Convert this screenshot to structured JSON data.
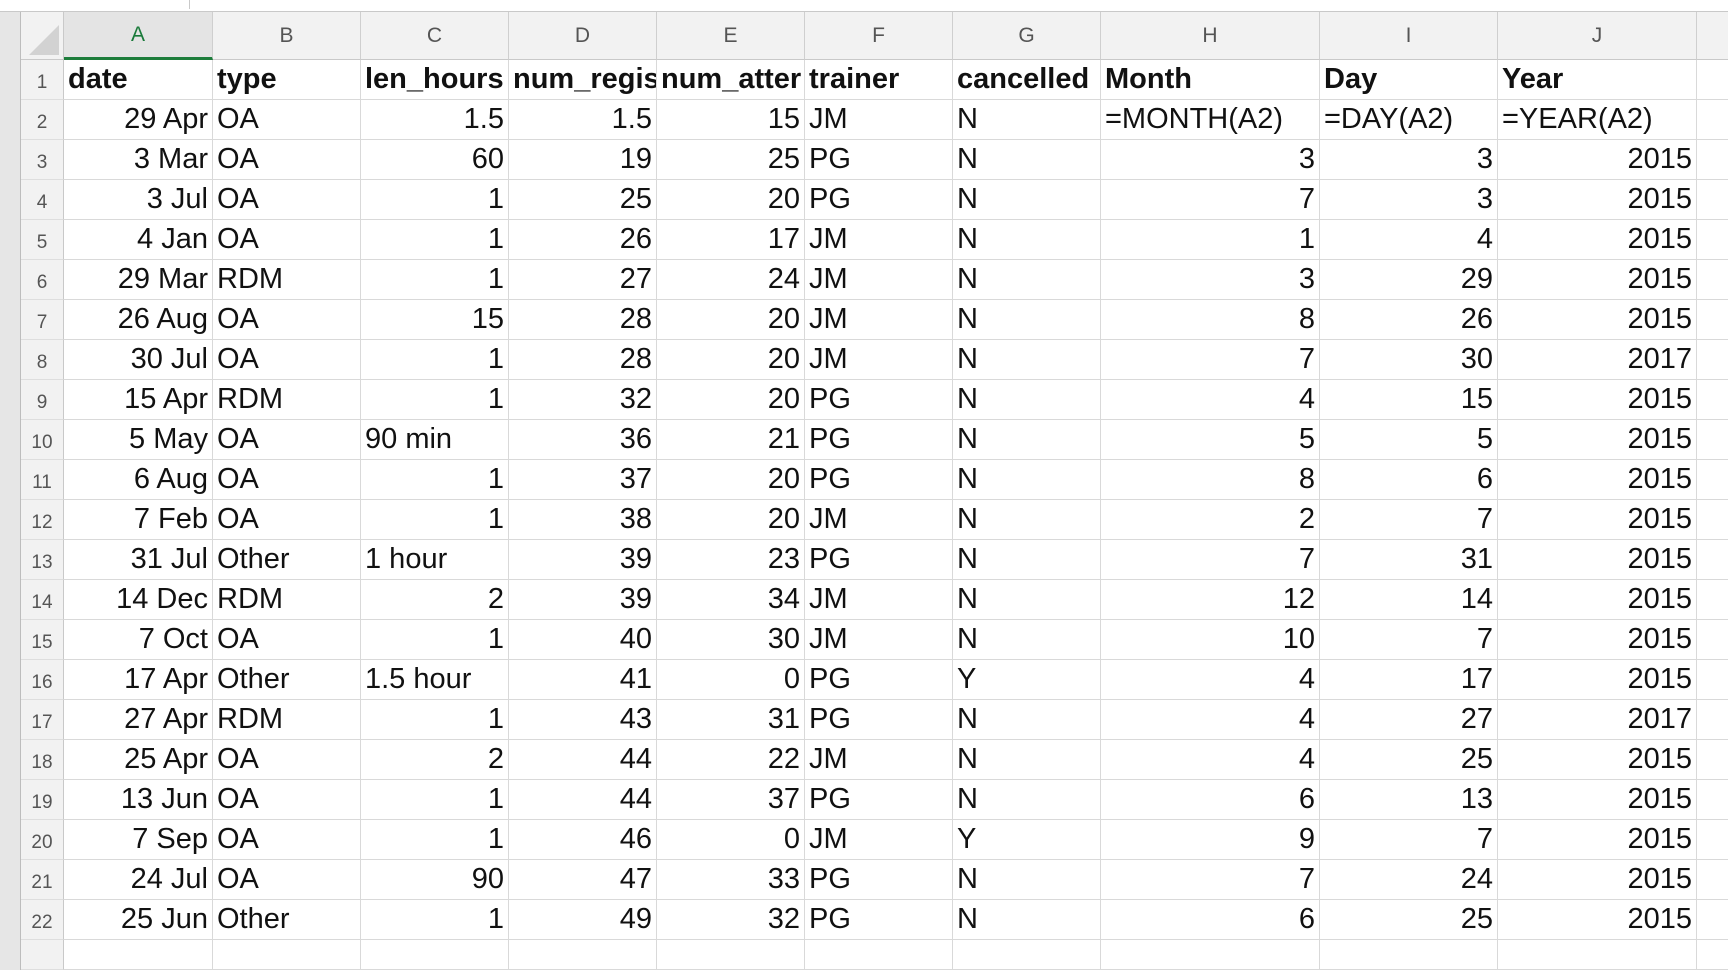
{
  "columns": [
    "A",
    "B",
    "C",
    "D",
    "E",
    "F",
    "G",
    "H",
    "I",
    "J"
  ],
  "selected_column": "A",
  "row_numbers": [
    "1",
    "2",
    "3",
    "4",
    "5",
    "6",
    "7",
    "8",
    "9",
    "10",
    "11",
    "12",
    "13",
    "14",
    "15",
    "16",
    "17",
    "18",
    "19",
    "20",
    "21",
    "22"
  ],
  "rows": [
    [
      {
        "v": "date",
        "a": "l",
        "b": true
      },
      {
        "v": "type",
        "a": "l",
        "b": true
      },
      {
        "v": "len_hours",
        "a": "l",
        "b": true
      },
      {
        "v": "num_regis",
        "a": "l",
        "b": true
      },
      {
        "v": "num_atter",
        "a": "l",
        "b": true
      },
      {
        "v": "trainer",
        "a": "l",
        "b": true
      },
      {
        "v": "cancelled",
        "a": "l",
        "b": true
      },
      {
        "v": "Month",
        "a": "l",
        "b": true
      },
      {
        "v": "Day",
        "a": "l",
        "b": true
      },
      {
        "v": "Year",
        "a": "l",
        "b": true
      }
    ],
    [
      {
        "v": "29 Apr",
        "a": "r"
      },
      {
        "v": "OA",
        "a": "l"
      },
      {
        "v": "1.5",
        "a": "r"
      },
      {
        "v": "1.5",
        "a": "r"
      },
      {
        "v": "15",
        "a": "r"
      },
      {
        "v": "JM",
        "a": "l"
      },
      {
        "v": "N",
        "a": "l"
      },
      {
        "v": "=MONTH(A2)",
        "a": "l"
      },
      {
        "v": "=DAY(A2)",
        "a": "l"
      },
      {
        "v": "=YEAR(A2)",
        "a": "l"
      }
    ],
    [
      {
        "v": "3 Mar",
        "a": "r"
      },
      {
        "v": "OA",
        "a": "l"
      },
      {
        "v": "60",
        "a": "r"
      },
      {
        "v": "19",
        "a": "r"
      },
      {
        "v": "25",
        "a": "r"
      },
      {
        "v": "PG",
        "a": "l"
      },
      {
        "v": "N",
        "a": "l"
      },
      {
        "v": "3",
        "a": "r"
      },
      {
        "v": "3",
        "a": "r"
      },
      {
        "v": "2015",
        "a": "r"
      }
    ],
    [
      {
        "v": "3 Jul",
        "a": "r"
      },
      {
        "v": "OA",
        "a": "l"
      },
      {
        "v": "1",
        "a": "r"
      },
      {
        "v": "25",
        "a": "r"
      },
      {
        "v": "20",
        "a": "r"
      },
      {
        "v": "PG",
        "a": "l"
      },
      {
        "v": "N",
        "a": "l"
      },
      {
        "v": "7",
        "a": "r"
      },
      {
        "v": "3",
        "a": "r"
      },
      {
        "v": "2015",
        "a": "r"
      }
    ],
    [
      {
        "v": "4 Jan",
        "a": "r"
      },
      {
        "v": "OA",
        "a": "l"
      },
      {
        "v": "1",
        "a": "r"
      },
      {
        "v": "26",
        "a": "r"
      },
      {
        "v": "17",
        "a": "r"
      },
      {
        "v": "JM",
        "a": "l"
      },
      {
        "v": "N",
        "a": "l"
      },
      {
        "v": "1",
        "a": "r"
      },
      {
        "v": "4",
        "a": "r"
      },
      {
        "v": "2015",
        "a": "r"
      }
    ],
    [
      {
        "v": "29 Mar",
        "a": "r"
      },
      {
        "v": "RDM",
        "a": "l"
      },
      {
        "v": "1",
        "a": "r"
      },
      {
        "v": "27",
        "a": "r"
      },
      {
        "v": "24",
        "a": "r"
      },
      {
        "v": "JM",
        "a": "l"
      },
      {
        "v": "N",
        "a": "l"
      },
      {
        "v": "3",
        "a": "r"
      },
      {
        "v": "29",
        "a": "r"
      },
      {
        "v": "2015",
        "a": "r"
      }
    ],
    [
      {
        "v": "26 Aug",
        "a": "r"
      },
      {
        "v": "OA",
        "a": "l"
      },
      {
        "v": "15",
        "a": "r"
      },
      {
        "v": "28",
        "a": "r"
      },
      {
        "v": "20",
        "a": "r"
      },
      {
        "v": "JM",
        "a": "l"
      },
      {
        "v": "N",
        "a": "l"
      },
      {
        "v": "8",
        "a": "r"
      },
      {
        "v": "26",
        "a": "r"
      },
      {
        "v": "2015",
        "a": "r"
      }
    ],
    [
      {
        "v": "30 Jul",
        "a": "r"
      },
      {
        "v": "OA",
        "a": "l"
      },
      {
        "v": "1",
        "a": "r"
      },
      {
        "v": "28",
        "a": "r"
      },
      {
        "v": "20",
        "a": "r"
      },
      {
        "v": "JM",
        "a": "l"
      },
      {
        "v": "N",
        "a": "l"
      },
      {
        "v": "7",
        "a": "r"
      },
      {
        "v": "30",
        "a": "r"
      },
      {
        "v": "2017",
        "a": "r"
      }
    ],
    [
      {
        "v": "15 Apr",
        "a": "r"
      },
      {
        "v": "RDM",
        "a": "l"
      },
      {
        "v": "1",
        "a": "r"
      },
      {
        "v": "32",
        "a": "r"
      },
      {
        "v": "20",
        "a": "r"
      },
      {
        "v": "PG",
        "a": "l"
      },
      {
        "v": "N",
        "a": "l"
      },
      {
        "v": "4",
        "a": "r"
      },
      {
        "v": "15",
        "a": "r"
      },
      {
        "v": "2015",
        "a": "r"
      }
    ],
    [
      {
        "v": "5 May",
        "a": "r"
      },
      {
        "v": "OA",
        "a": "l"
      },
      {
        "v": "90 min",
        "a": "l"
      },
      {
        "v": "36",
        "a": "r"
      },
      {
        "v": "21",
        "a": "r"
      },
      {
        "v": "PG",
        "a": "l"
      },
      {
        "v": "N",
        "a": "l"
      },
      {
        "v": "5",
        "a": "r"
      },
      {
        "v": "5",
        "a": "r"
      },
      {
        "v": "2015",
        "a": "r"
      }
    ],
    [
      {
        "v": "6 Aug",
        "a": "r"
      },
      {
        "v": "OA",
        "a": "l"
      },
      {
        "v": "1",
        "a": "r"
      },
      {
        "v": "37",
        "a": "r"
      },
      {
        "v": "20",
        "a": "r"
      },
      {
        "v": "PG",
        "a": "l"
      },
      {
        "v": "N",
        "a": "l"
      },
      {
        "v": "8",
        "a": "r"
      },
      {
        "v": "6",
        "a": "r"
      },
      {
        "v": "2015",
        "a": "r"
      }
    ],
    [
      {
        "v": "7 Feb",
        "a": "r"
      },
      {
        "v": "OA",
        "a": "l"
      },
      {
        "v": "1",
        "a": "r"
      },
      {
        "v": "38",
        "a": "r"
      },
      {
        "v": "20",
        "a": "r"
      },
      {
        "v": "JM",
        "a": "l"
      },
      {
        "v": "N",
        "a": "l"
      },
      {
        "v": "2",
        "a": "r"
      },
      {
        "v": "7",
        "a": "r"
      },
      {
        "v": "2015",
        "a": "r"
      }
    ],
    [
      {
        "v": "31 Jul",
        "a": "r"
      },
      {
        "v": "Other",
        "a": "l"
      },
      {
        "v": "1 hour",
        "a": "l"
      },
      {
        "v": "39",
        "a": "r"
      },
      {
        "v": "23",
        "a": "r"
      },
      {
        "v": "PG",
        "a": "l"
      },
      {
        "v": "N",
        "a": "l"
      },
      {
        "v": "7",
        "a": "r"
      },
      {
        "v": "31",
        "a": "r"
      },
      {
        "v": "2015",
        "a": "r"
      }
    ],
    [
      {
        "v": "14 Dec",
        "a": "r"
      },
      {
        "v": "RDM",
        "a": "l"
      },
      {
        "v": "2",
        "a": "r"
      },
      {
        "v": "39",
        "a": "r"
      },
      {
        "v": "34",
        "a": "r"
      },
      {
        "v": "JM",
        "a": "l"
      },
      {
        "v": "N",
        "a": "l"
      },
      {
        "v": "12",
        "a": "r"
      },
      {
        "v": "14",
        "a": "r"
      },
      {
        "v": "2015",
        "a": "r"
      }
    ],
    [
      {
        "v": "7 Oct",
        "a": "r"
      },
      {
        "v": "OA",
        "a": "l"
      },
      {
        "v": "1",
        "a": "r"
      },
      {
        "v": "40",
        "a": "r"
      },
      {
        "v": "30",
        "a": "r"
      },
      {
        "v": "JM",
        "a": "l"
      },
      {
        "v": "N",
        "a": "l"
      },
      {
        "v": "10",
        "a": "r"
      },
      {
        "v": "7",
        "a": "r"
      },
      {
        "v": "2015",
        "a": "r"
      }
    ],
    [
      {
        "v": "17 Apr",
        "a": "r"
      },
      {
        "v": "Other",
        "a": "l"
      },
      {
        "v": "1.5 hour",
        "a": "l"
      },
      {
        "v": "41",
        "a": "r"
      },
      {
        "v": "0",
        "a": "r"
      },
      {
        "v": "PG",
        "a": "l"
      },
      {
        "v": "Y",
        "a": "l"
      },
      {
        "v": "4",
        "a": "r"
      },
      {
        "v": "17",
        "a": "r"
      },
      {
        "v": "2015",
        "a": "r"
      }
    ],
    [
      {
        "v": "27 Apr",
        "a": "r"
      },
      {
        "v": "RDM",
        "a": "l"
      },
      {
        "v": "1",
        "a": "r"
      },
      {
        "v": "43",
        "a": "r"
      },
      {
        "v": "31",
        "a": "r"
      },
      {
        "v": "PG",
        "a": "l"
      },
      {
        "v": "N",
        "a": "l"
      },
      {
        "v": "4",
        "a": "r"
      },
      {
        "v": "27",
        "a": "r"
      },
      {
        "v": "2017",
        "a": "r"
      }
    ],
    [
      {
        "v": "25 Apr",
        "a": "r"
      },
      {
        "v": "OA",
        "a": "l"
      },
      {
        "v": "2",
        "a": "r"
      },
      {
        "v": "44",
        "a": "r"
      },
      {
        "v": "22",
        "a": "r"
      },
      {
        "v": "JM",
        "a": "l"
      },
      {
        "v": "N",
        "a": "l"
      },
      {
        "v": "4",
        "a": "r"
      },
      {
        "v": "25",
        "a": "r"
      },
      {
        "v": "2015",
        "a": "r"
      }
    ],
    [
      {
        "v": "13 Jun",
        "a": "r"
      },
      {
        "v": "OA",
        "a": "l"
      },
      {
        "v": "1",
        "a": "r"
      },
      {
        "v": "44",
        "a": "r"
      },
      {
        "v": "37",
        "a": "r"
      },
      {
        "v": "PG",
        "a": "l"
      },
      {
        "v": "N",
        "a": "l"
      },
      {
        "v": "6",
        "a": "r"
      },
      {
        "v": "13",
        "a": "r"
      },
      {
        "v": "2015",
        "a": "r"
      }
    ],
    [
      {
        "v": "7 Sep",
        "a": "r"
      },
      {
        "v": "OA",
        "a": "l"
      },
      {
        "v": "1",
        "a": "r"
      },
      {
        "v": "46",
        "a": "r"
      },
      {
        "v": "0",
        "a": "r"
      },
      {
        "v": "JM",
        "a": "l"
      },
      {
        "v": "Y",
        "a": "l"
      },
      {
        "v": "9",
        "a": "r"
      },
      {
        "v": "7",
        "a": "r"
      },
      {
        "v": "2015",
        "a": "r"
      }
    ],
    [
      {
        "v": "24 Jul",
        "a": "r"
      },
      {
        "v": "OA",
        "a": "l"
      },
      {
        "v": "90",
        "a": "r"
      },
      {
        "v": "47",
        "a": "r"
      },
      {
        "v": "33",
        "a": "r"
      },
      {
        "v": "PG",
        "a": "l"
      },
      {
        "v": "N",
        "a": "l"
      },
      {
        "v": "7",
        "a": "r"
      },
      {
        "v": "24",
        "a": "r"
      },
      {
        "v": "2015",
        "a": "r"
      }
    ],
    [
      {
        "v": "25 Jun",
        "a": "r"
      },
      {
        "v": "Other",
        "a": "l"
      },
      {
        "v": "1",
        "a": "r"
      },
      {
        "v": "49",
        "a": "r"
      },
      {
        "v": "32",
        "a": "r"
      },
      {
        "v": "PG",
        "a": "l"
      },
      {
        "v": "N",
        "a": "l"
      },
      {
        "v": "6",
        "a": "r"
      },
      {
        "v": "25",
        "a": "r"
      },
      {
        "v": "2015",
        "a": "r"
      }
    ]
  ]
}
